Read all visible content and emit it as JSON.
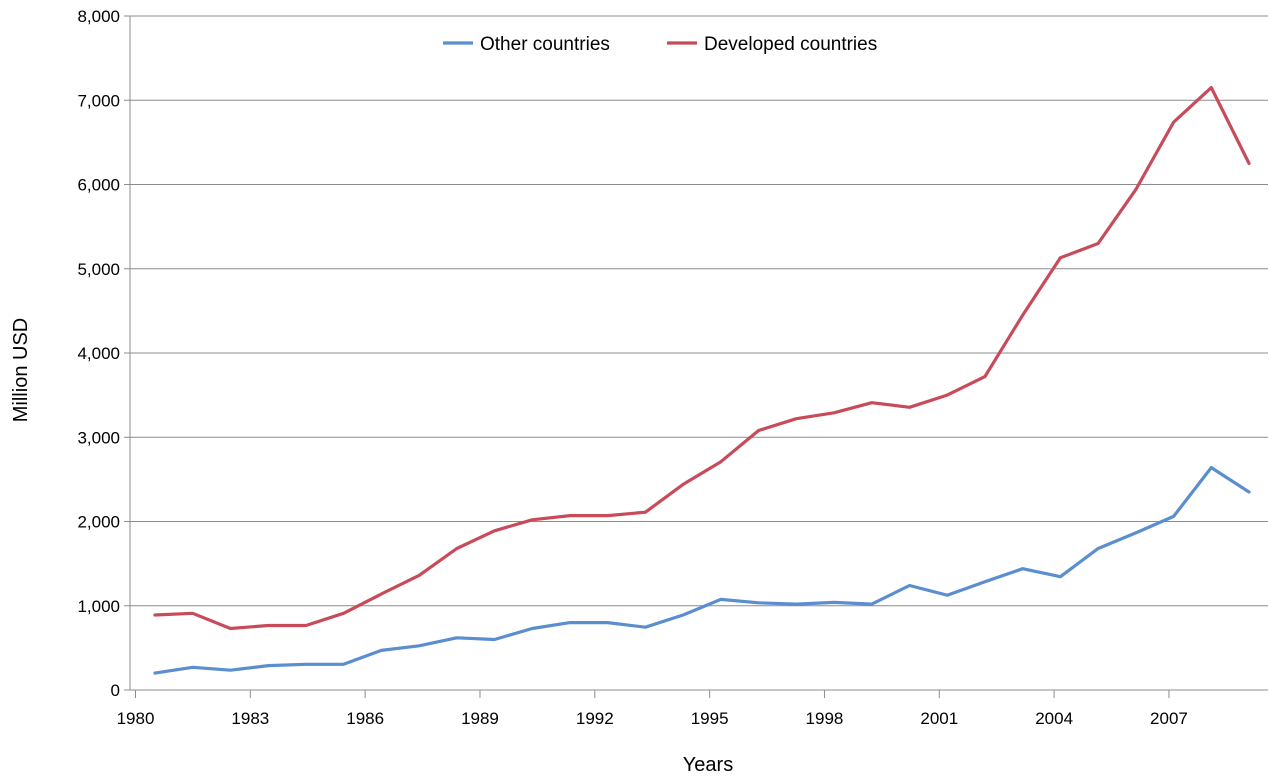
{
  "chart_data": {
    "type": "line",
    "xlabel": "Years",
    "ylabel": "Million USD",
    "ylim": [
      0,
      8000
    ],
    "xlim": [
      1980,
      2009
    ],
    "grid": true,
    "legend_position": "top-center",
    "x": [
      1980,
      1981,
      1982,
      1983,
      1984,
      1985,
      1986,
      1987,
      1988,
      1989,
      1990,
      1991,
      1992,
      1993,
      1994,
      1995,
      1996,
      1997,
      1998,
      1999,
      2000,
      2001,
      2002,
      2003,
      2004,
      2005,
      2006,
      2007,
      2008,
      2009
    ],
    "x_ticks": [
      "1980",
      "1983",
      "1986",
      "1989",
      "1992",
      "1995",
      "1998",
      "2001",
      "2004",
      "2007"
    ],
    "y_ticks": [
      "0",
      "1,000",
      "2,000",
      "3,000",
      "4,000",
      "5,000",
      "6,000",
      "7,000",
      "8,000"
    ],
    "series": [
      {
        "name": "Other countries",
        "color": "#5b8ecf",
        "values": [
          200,
          270,
          235,
          290,
          305,
          305,
          470,
          525,
          620,
          600,
          730,
          800,
          800,
          745,
          890,
          1075,
          1035,
          1020,
          1040,
          1020,
          1240,
          1125,
          1285,
          1440,
          1345,
          1680,
          1865,
          2060,
          2640,
          2350
        ]
      },
      {
        "name": "Developed countries",
        "color": "#c84b5a",
        "values": [
          890,
          910,
          730,
          765,
          765,
          910,
          1140,
          1360,
          1680,
          1890,
          2020,
          2070,
          2070,
          2110,
          2440,
          2710,
          3080,
          3220,
          3290,
          3410,
          3355,
          3500,
          3720,
          4450,
          5130,
          5300,
          5940,
          6740,
          7150,
          6250
        ]
      }
    ]
  }
}
